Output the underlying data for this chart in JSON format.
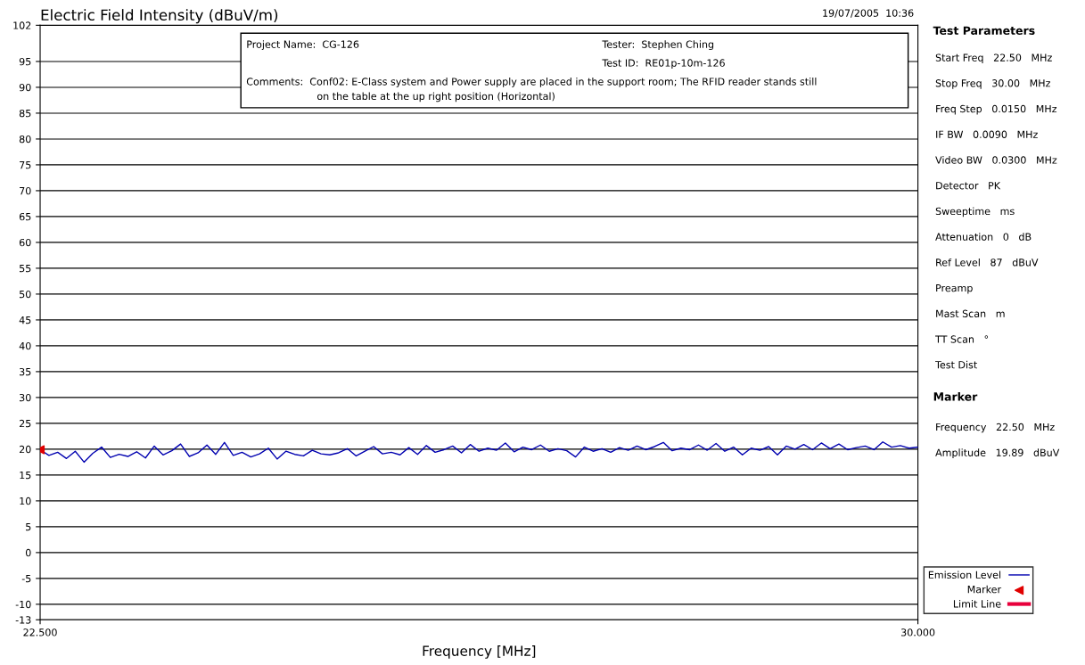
{
  "chart_data": {
    "type": "line",
    "title": "Electric Field Intensity (dBuV/m)",
    "xlabel": "Frequency [MHz]",
    "xlim": [
      22.5,
      30.0
    ],
    "xticks": [
      {
        "value": 22.5,
        "label": "22.500"
      },
      {
        "value": 30.0,
        "label": "30.000"
      }
    ],
    "ylim": [
      -13,
      102
    ],
    "yticks": [
      -13,
      -10,
      -5,
      0,
      5,
      10,
      15,
      20,
      25,
      30,
      35,
      40,
      45,
      50,
      55,
      60,
      65,
      70,
      75,
      80,
      85,
      90,
      95,
      102
    ],
    "grid": "y",
    "legend": "bottom right",
    "series": [
      {
        "name": "Emission Level",
        "color": "#0000b0",
        "marker": "none",
        "x": [
          22.5,
          22.575,
          22.65,
          22.725,
          22.8,
          22.875,
          22.95,
          23.025,
          23.1,
          23.175,
          23.25,
          23.325,
          23.4,
          23.475,
          23.55,
          23.625,
          23.7,
          23.775,
          23.85,
          23.925,
          24.0,
          24.075,
          24.15,
          24.225,
          24.3,
          24.375,
          24.45,
          24.525,
          24.6,
          24.675,
          24.75,
          24.825,
          24.9,
          24.975,
          25.05,
          25.125,
          25.2,
          25.275,
          25.35,
          25.425,
          25.5,
          25.575,
          25.65,
          25.725,
          25.8,
          25.875,
          25.95,
          26.025,
          26.1,
          26.175,
          26.25,
          26.325,
          26.4,
          26.475,
          26.55,
          26.625,
          26.7,
          26.775,
          26.85,
          26.925,
          27.0,
          27.075,
          27.15,
          27.225,
          27.3,
          27.375,
          27.45,
          27.525,
          27.6,
          27.675,
          27.75,
          27.825,
          27.9,
          27.975,
          28.05,
          28.125,
          28.2,
          28.275,
          28.35,
          28.425,
          28.5,
          28.575,
          28.65,
          28.725,
          28.8,
          28.875,
          28.95,
          29.025,
          29.1,
          29.175,
          29.25,
          29.325,
          29.4,
          29.475,
          29.55,
          29.625,
          29.7,
          29.775,
          29.85,
          29.925,
          30.0
        ],
        "values": [
          19.9,
          18.8,
          19.4,
          18.2,
          19.6,
          17.5,
          19.2,
          20.4,
          18.4,
          19.0,
          18.6,
          19.5,
          18.3,
          20.6,
          18.9,
          19.7,
          21.0,
          18.6,
          19.3,
          20.8,
          19.0,
          21.3,
          18.8,
          19.4,
          18.5,
          19.1,
          20.2,
          18.1,
          19.6,
          19.0,
          18.7,
          19.8,
          19.1,
          18.9,
          19.3,
          20.1,
          18.7,
          19.6,
          20.5,
          19.1,
          19.4,
          18.9,
          20.3,
          19.0,
          20.7,
          19.4,
          19.9,
          20.6,
          19.3,
          20.9,
          19.6,
          20.2,
          19.8,
          21.2,
          19.5,
          20.4,
          19.9,
          20.8,
          19.6,
          20.1,
          19.7,
          18.5,
          20.4,
          19.6,
          20.1,
          19.4,
          20.3,
          19.8,
          20.6,
          19.9,
          20.5,
          21.3,
          19.7,
          20.2,
          19.9,
          20.8,
          19.8,
          21.1,
          19.6,
          20.4,
          18.9,
          20.2,
          19.8,
          20.5,
          18.9,
          20.6,
          20.0,
          20.9,
          19.9,
          21.2,
          20.1,
          21.0,
          19.9,
          20.3,
          20.6,
          19.9,
          21.4,
          20.4,
          20.7,
          20.2,
          20.4
        ]
      },
      {
        "name": "Marker",
        "type": "scatter",
        "color": "#e00000",
        "marker": "triangle",
        "x": [
          22.5
        ],
        "values": [
          19.89
        ]
      },
      {
        "name": "Limit Line",
        "color": "#e8003c",
        "marker": "none"
      }
    ],
    "annotations": [
      "19/07/2005  10:36",
      "Project Name:  CG-126",
      "Tester:  Stephen Ching",
      "Test ID:  RE01p-10m-126",
      "Comments:  Conf02: E-Class system and Power supply are placed in the support room; The RFID reader stands still",
      "on the table at the up right position (Horizontal)",
      "Test Parameters",
      "Start Freq   22.50   MHz",
      "Stop Freq   30.00   MHz",
      "Freq Step   0.0150   MHz",
      "IF BW   0.0090   MHz",
      "Video BW   0.0300   MHz",
      "Detector   PK",
      "Sweeptime   ms",
      "Attenuation   0   dB",
      "Ref Level   87   dBuV",
      "Preamp",
      "Mast Scan   m",
      "TT Scan   °",
      "Test Dist",
      "Marker",
      "Frequency   22.50   MHz",
      "Amplitude   19.89   dBuV"
    ]
  }
}
